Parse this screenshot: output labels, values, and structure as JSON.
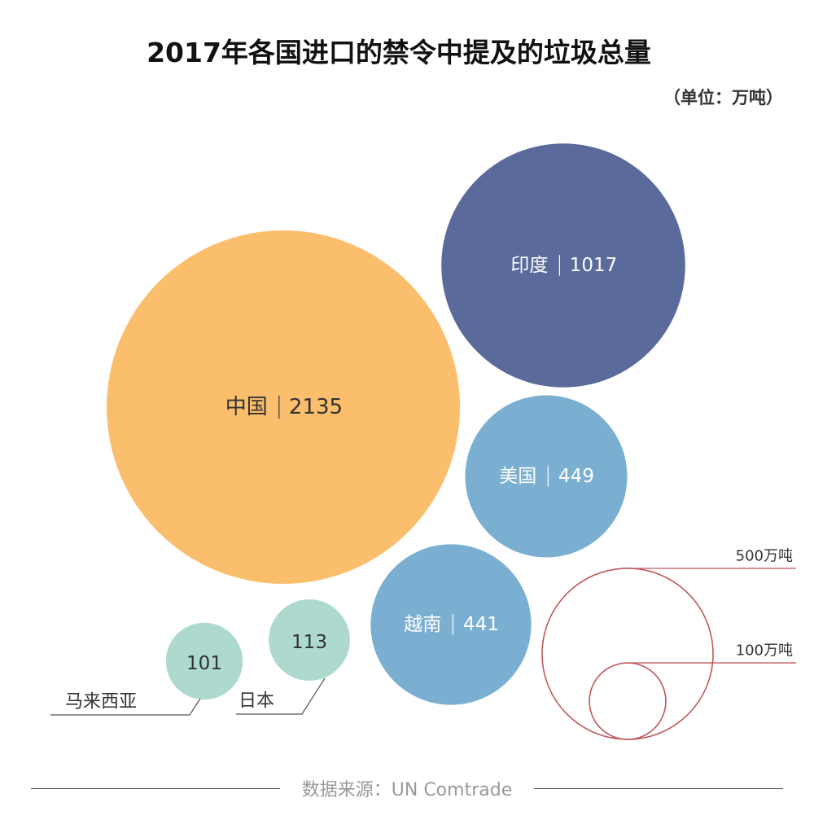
{
  "title": "2017年各国进口的禁令中提及的垃圾总量",
  "unit": "（单位：万吨）",
  "source": "数据来源：UN Comtrade",
  "chart_data": {
    "type": "bubble",
    "title": "2017年各国进口的禁令中提及的垃圾总量",
    "unit": "（单位：万吨）",
    "separator": "|",
    "items": [
      {
        "name": "中国",
        "value": 2135,
        "color": "#FBBE6D",
        "label_color": "#333333"
      },
      {
        "name": "印度",
        "value": 1017,
        "color": "#5A6B9B",
        "label_color": "#FFFFFF"
      },
      {
        "name": "美国",
        "value": 449,
        "color": "#7BAFD2",
        "label_color": "#FFFFFF"
      },
      {
        "name": "越南",
        "value": 441,
        "color": "#7BAFD2",
        "label_color": "#FFFFFF"
      },
      {
        "name": "日本",
        "value": 113,
        "color": "#ADD9CF",
        "label_color": "#333333"
      },
      {
        "name": "马来西亚",
        "value": 101,
        "color": "#ADD9CF",
        "label_color": "#333333"
      }
    ],
    "legend": [
      {
        "value": 500,
        "label": "500万吨"
      },
      {
        "value": 100,
        "label": "100万吨"
      }
    ],
    "legend_color": "#C0575A",
    "source": "数据来源：UN Comtrade"
  }
}
